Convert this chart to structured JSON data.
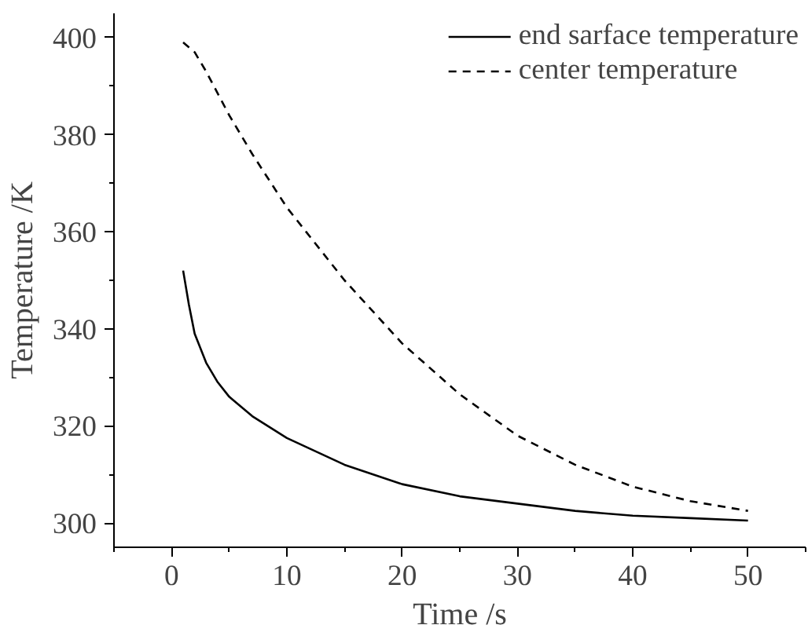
{
  "chart_data": {
    "type": "line",
    "xlabel": "Time /s",
    "ylabel": "Temperature /K",
    "xlim": [
      -5,
      55
    ],
    "ylim": [
      295,
      405
    ],
    "xticks": [
      0,
      10,
      20,
      30,
      40,
      50
    ],
    "yticks": [
      300,
      320,
      340,
      360,
      380,
      400
    ],
    "grid": false,
    "legend": "top right",
    "series": [
      {
        "name": "end sarface temperature",
        "color": "#000000",
        "line_style": "solid",
        "x": [
          1,
          1.5,
          2,
          3,
          4,
          5,
          7,
          10,
          15,
          20,
          25,
          30,
          35,
          40,
          45,
          50
        ],
        "values": [
          352,
          345,
          339,
          333,
          329,
          326,
          322,
          317.5,
          312,
          308,
          305.5,
          304,
          302.5,
          301.5,
          301,
          300.5
        ]
      },
      {
        "name": "center temperature",
        "color": "#000000",
        "line_style": "dashed",
        "x": [
          1,
          2,
          3,
          5,
          7,
          10,
          15,
          20,
          25,
          30,
          35,
          40,
          45,
          50
        ],
        "values": [
          399,
          397,
          393,
          384,
          376,
          365,
          350,
          337,
          326.5,
          318,
          312,
          307.5,
          304.5,
          302.5
        ]
      }
    ]
  }
}
